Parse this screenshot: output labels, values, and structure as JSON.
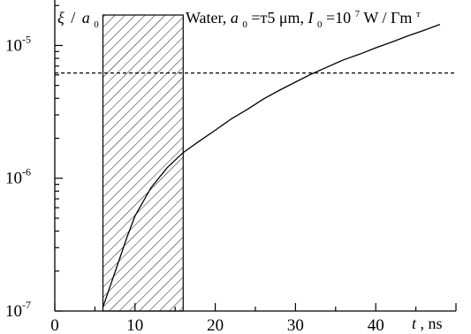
{
  "chart_data": {
    "type": "line",
    "title": "",
    "ylabel": {
      "symbol": "ξ",
      "divider": "/",
      "base": "a",
      "sub": "0"
    },
    "xlabel": {
      "symbol": "t",
      "unit": ", ns"
    },
    "annotation": {
      "medium": "Water, ",
      "radius_symbol": "a",
      "radius_sub": "0",
      "radius_value": "=т5 μm, ",
      "intensity_symbol": "I",
      "intensity_sub": "0",
      "intensity_base": "=10",
      "intensity_exp": "7",
      "intensity_unit": "W / Гm",
      "intensity_unit_exp": "т"
    },
    "x_ticks": [
      0,
      10,
      20,
      30,
      40
    ],
    "y_ticks": [
      {
        "base": "10",
        "exp": "-7",
        "value": 1e-07
      },
      {
        "base": "10",
        "exp": "-6",
        "value": 1e-06
      },
      {
        "base": "10",
        "exp": "-5",
        "value": 1e-05
      }
    ],
    "xlim": [
      0,
      50
    ],
    "ylim": [
      1e-07,
      2.2e-05
    ],
    "y_scale": "log",
    "series": [
      {
        "color": "#000000",
        "style": "solid",
        "x": [
          6.0,
          7.0,
          8.0,
          9.0,
          10.0,
          12.0,
          14.0,
          16.0,
          18.0,
          20.0,
          22.0,
          24.0,
          26.0,
          28.0,
          30.0,
          32.0,
          34.0,
          36.0,
          38.0,
          40.0,
          42.0,
          44.0,
          46.0,
          48.0
        ],
        "y": [
          1.07e-07,
          1.6e-07,
          2.4e-07,
          3.6e-07,
          5.2e-07,
          8.5e-07,
          1.2e-06,
          1.56e-06,
          1.9e-06,
          2.3e-06,
          2.8e-06,
          3.3e-06,
          3.95e-06,
          4.6e-06,
          5.3e-06,
          6.1e-06,
          6.9e-06,
          7.8e-06,
          8.6e-06,
          9.6e-06,
          1.06e-05,
          1.18e-05,
          1.3e-05,
          1.44e-05
        ]
      },
      {
        "color": "#000000",
        "style": "dashed",
        "x": [
          0,
          50
        ],
        "y": [
          6.2e-06,
          6.2e-06
        ]
      }
    ],
    "shaded_region": {
      "x": [
        6,
        16
      ],
      "pattern": "diagonal-hatch"
    },
    "grid": false,
    "legend": "none"
  }
}
